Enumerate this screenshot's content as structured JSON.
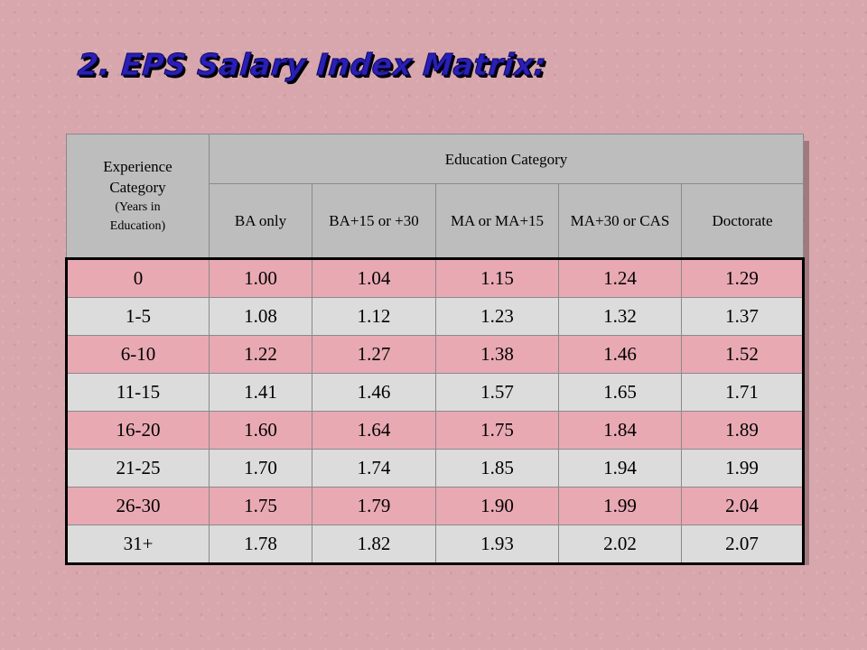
{
  "title": "2. EPS Salary Index Matrix:",
  "table": {
    "experience_header_line1": "Experience",
    "experience_header_line2": "Category",
    "experience_header_sub1": "(Years in",
    "experience_header_sub2": "Education)",
    "education_header": "Education Category",
    "columns": [
      "BA only",
      "BA+15  or +30",
      "MA or MA+15",
      "MA+30 or CAS",
      "Doctorate"
    ],
    "rows": [
      {
        "label": "0",
        "values": [
          "1.00",
          "1.04",
          "1.15",
          "1.24",
          "1.29"
        ]
      },
      {
        "label": "1-5",
        "values": [
          "1.08",
          "1.12",
          "1.23",
          "1.32",
          "1.37"
        ]
      },
      {
        "label": "6-10",
        "values": [
          "1.22",
          "1.27",
          "1.38",
          "1.46",
          "1.52"
        ]
      },
      {
        "label": "11-15",
        "values": [
          "1.41",
          "1.46",
          "1.57",
          "1.65",
          "1.71"
        ]
      },
      {
        "label": "16-20",
        "values": [
          "1.60",
          "1.64",
          "1.75",
          "1.84",
          "1.89"
        ]
      },
      {
        "label": "21-25",
        "values": [
          "1.70",
          "1.74",
          "1.85",
          "1.94",
          "1.99"
        ]
      },
      {
        "label": "26-30",
        "values": [
          "1.75",
          "1.79",
          "1.90",
          "1.99",
          "2.04"
        ]
      },
      {
        "label": "31+",
        "values": [
          "1.78",
          "1.82",
          "1.93",
          "2.02",
          "2.07"
        ]
      }
    ]
  }
}
